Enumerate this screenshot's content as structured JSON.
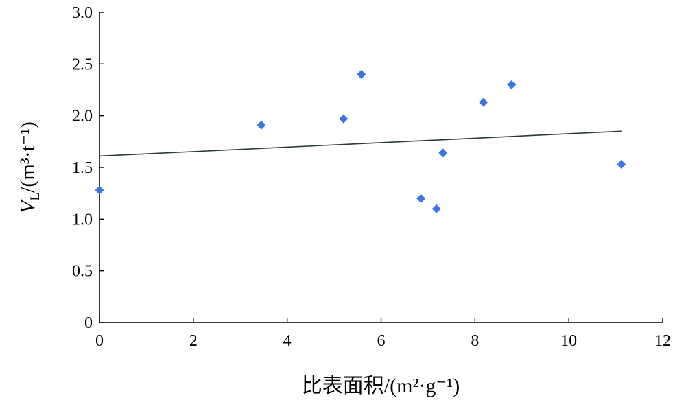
{
  "chart_data": {
    "type": "scatter",
    "title": "",
    "xlabel": "比表面积/(m²·g⁻¹)",
    "ylabel": "V_L/(m³·t⁻¹)",
    "ylabel_parts": {
      "main": "V",
      "sub": "L",
      "unit": "/(m³·t⁻¹)"
    },
    "xlim": [
      0,
      12
    ],
    "ylim": [
      0,
      3.0
    ],
    "x_ticks": [
      0,
      2,
      4,
      6,
      8,
      10,
      12
    ],
    "x_tick_labels": [
      "0",
      "2",
      "4",
      "6",
      "8",
      "10",
      "12"
    ],
    "y_ticks": [
      0,
      0.5,
      1.0,
      1.5,
      2.0,
      2.5,
      3.0
    ],
    "y_tick_labels": [
      "0",
      "0.5",
      "1.0",
      "1.5",
      "2.0",
      "2.5",
      "3.0"
    ],
    "grid": false,
    "legend": "none",
    "series": [
      {
        "marker": "diamond",
        "color": "#3d74e8",
        "points": [
          {
            "x": 0.0,
            "y": 1.28
          },
          {
            "x": 3.45,
            "y": 1.91
          },
          {
            "x": 5.2,
            "y": 1.97
          },
          {
            "x": 5.58,
            "y": 2.4
          },
          {
            "x": 6.85,
            "y": 1.2
          },
          {
            "x": 7.18,
            "y": 1.1
          },
          {
            "x": 7.32,
            "y": 1.64
          },
          {
            "x": 8.18,
            "y": 2.13
          },
          {
            "x": 8.78,
            "y": 2.3
          },
          {
            "x": 11.12,
            "y": 1.53
          }
        ]
      }
    ],
    "trendline": {
      "color": "#2b3a35",
      "points": [
        {
          "x": 0.0,
          "y": 1.61
        },
        {
          "x": 11.12,
          "y": 1.85
        }
      ]
    }
  }
}
